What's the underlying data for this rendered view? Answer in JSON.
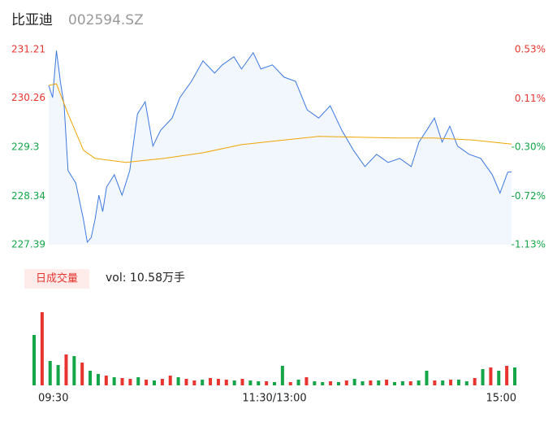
{
  "header": {
    "title": "比亚迪",
    "code": "002594.SZ"
  },
  "chart_data": [
    {
      "type": "line",
      "xlim": [
        0,
        240
      ],
      "ylim": [
        227.39,
        231.21
      ],
      "yticks": [
        231.21,
        230.26,
        229.3,
        228.34,
        227.39
      ],
      "y2lim": [
        -1.13,
        0.53
      ],
      "y2ticks": [
        {
          "value": 0.53,
          "label": "0.53%"
        },
        {
          "value": 0.11,
          "label": "0.11%"
        },
        {
          "value": -0.3,
          "label": "-0.30%"
        },
        {
          "value": -0.72,
          "label": "-0.72%"
        },
        {
          "value": -1.13,
          "label": "-1.13%"
        }
      ],
      "up_color": "#e8342f",
      "down_color": "#13a548",
      "flat_color": "#888888",
      "series": [
        {
          "color": "#3b78e0",
          "fill": true,
          "x": [
            0,
            2,
            4,
            6,
            8,
            10,
            14,
            18,
            20,
            22,
            24,
            26,
            28,
            30,
            34,
            38,
            42,
            46,
            50,
            54,
            58,
            64,
            68,
            74,
            80,
            86,
            90,
            96,
            100,
            106,
            110,
            116,
            122,
            128,
            134,
            140,
            146,
            152,
            158,
            164,
            170,
            176,
            182,
            188,
            192,
            196,
            200,
            204,
            208,
            212,
            218,
            224,
            230,
            234,
            238,
            240
          ],
          "values": [
            230.51,
            230.27,
            231.19,
            230.59,
            230.11,
            228.84,
            228.6,
            227.88,
            227.44,
            227.53,
            227.88,
            228.36,
            228.04,
            228.52,
            228.76,
            228.36,
            228.84,
            229.95,
            230.19,
            229.32,
            229.63,
            229.87,
            230.27,
            230.59,
            230.99,
            230.75,
            230.91,
            231.07,
            230.83,
            231.15,
            230.83,
            230.91,
            230.67,
            230.59,
            230.03,
            229.87,
            230.11,
            229.63,
            229.24,
            228.92,
            229.16,
            229.0,
            229.08,
            228.92,
            229.4,
            229.63,
            229.87,
            229.4,
            229.71,
            229.32,
            229.16,
            229.08,
            228.76,
            228.4,
            228.81,
            228.82
          ]
        },
        {
          "color": "#f0a500",
          "fill": false,
          "x": [
            0,
            4,
            10,
            18,
            24,
            40,
            60,
            80,
            100,
            120,
            140,
            180,
            200,
            220,
            240
          ],
          "values": [
            230.51,
            230.54,
            229.95,
            229.24,
            229.08,
            229.0,
            229.08,
            229.19,
            229.35,
            229.43,
            229.51,
            229.48,
            229.48,
            229.44,
            229.36
          ]
        }
      ]
    },
    {
      "type": "bar",
      "title": "日成交量",
      "subtitle": "vol: 10.58万手",
      "xlim": [
        0,
        240
      ],
      "ylim": [
        0,
        100
      ],
      "xticks": [
        {
          "value": 0,
          "label": "09:30"
        },
        {
          "value": 120,
          "label": "11:30/13:00"
        },
        {
          "value": 240,
          "label": "15:00"
        }
      ],
      "x": [
        0,
        4,
        8,
        12,
        16,
        20,
        24,
        28,
        32,
        36,
        40,
        44,
        48,
        52,
        56,
        60,
        64,
        68,
        72,
        76,
        80,
        84,
        88,
        92,
        96,
        100,
        104,
        108,
        112,
        116,
        120,
        124,
        128,
        132,
        136,
        140,
        144,
        148,
        152,
        156,
        160,
        164,
        168,
        172,
        176,
        180,
        184,
        188,
        192,
        196,
        200,
        204,
        208,
        212,
        216,
        220,
        224,
        228,
        232,
        236,
        240
      ],
      "values": [
        62,
        90,
        30,
        25,
        38,
        36,
        28,
        18,
        14,
        12,
        10,
        9,
        8,
        10,
        7,
        6,
        8,
        12,
        10,
        8,
        6,
        7,
        9,
        8,
        7,
        6,
        8,
        6,
        5,
        5,
        4,
        24,
        4,
        7,
        10,
        5,
        4,
        5,
        4,
        6,
        8,
        5,
        6,
        6,
        7,
        4,
        5,
        5,
        6,
        18,
        6,
        6,
        7,
        7,
        5,
        9,
        20,
        22,
        18,
        24,
        22
      ],
      "colors": [
        "#13a548",
        "#e8342f",
        "#13a548",
        "#13a548",
        "#e8342f",
        "#13a548",
        "#e8342f",
        "#13a548",
        "#13a548",
        "#e8342f",
        "#13a548",
        "#e8342f",
        "#e8342f",
        "#13a548",
        "#e8342f",
        "#13a548",
        "#e8342f",
        "#e8342f",
        "#13a548",
        "#e8342f",
        "#e8342f",
        "#13a548",
        "#e8342f",
        "#e8342f",
        "#e8342f",
        "#13a548",
        "#e8342f",
        "#13a548",
        "#13a548",
        "#e8342f",
        "#13a548",
        "#13a548",
        "#e8342f",
        "#13a548",
        "#e8342f",
        "#13a548",
        "#13a548",
        "#e8342f",
        "#13a548",
        "#e8342f",
        "#13a548",
        "#13a548",
        "#e8342f",
        "#13a548",
        "#e8342f",
        "#13a548",
        "#13a548",
        "#e8342f",
        "#13a548",
        "#13a548",
        "#e8342f",
        "#13a548",
        "#e8342f",
        "#13a548",
        "#13a548",
        "#e8342f",
        "#13a548",
        "#e8342f",
        "#13a548",
        "#e8342f",
        "#13a548"
      ]
    }
  ]
}
